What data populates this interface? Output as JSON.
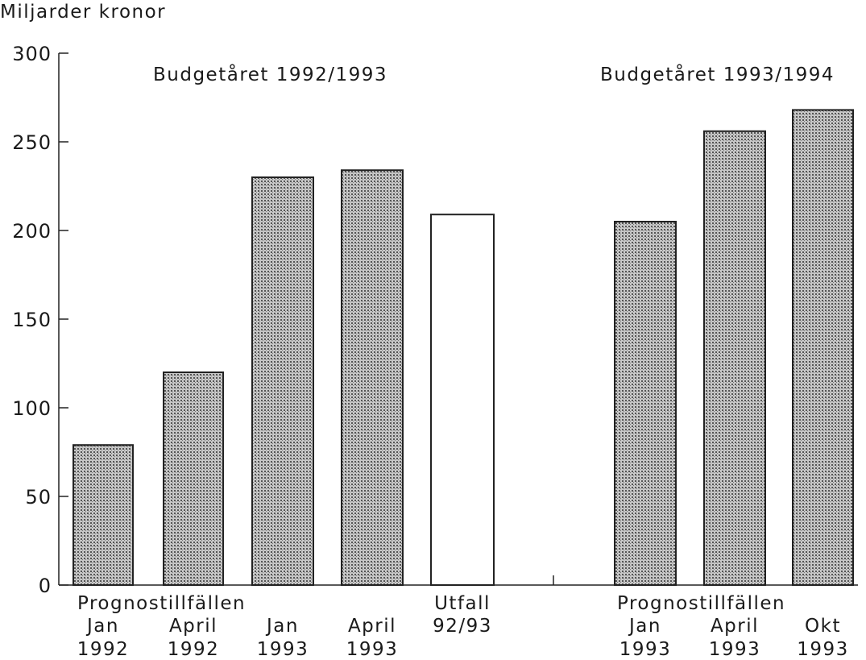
{
  "chart_data": {
    "type": "bar",
    "ylabel": "Miljarder kronor",
    "ylim": [
      0,
      300
    ],
    "yticks": [
      "0",
      "50",
      "100",
      "150",
      "200",
      "250",
      "300"
    ],
    "grid": false,
    "groups": [
      {
        "title": "Budgetåret 1992/1993",
        "label": "Prognostillfällen"
      },
      {
        "title": "Budgetåret 1993/1994",
        "label": "Prognostillfällen"
      }
    ],
    "categories": [
      [
        "Jan",
        "1992"
      ],
      [
        "April",
        "1992"
      ],
      [
        "Jan",
        "1993"
      ],
      [
        "April",
        "1993"
      ],
      [
        "Utfall",
        "92/93"
      ],
      [
        "Jan",
        "1993"
      ],
      [
        "April",
        "1993"
      ],
      [
        "Okt",
        "1993"
      ]
    ],
    "values": [
      79,
      120,
      230,
      234,
      209,
      205,
      256,
      268
    ],
    "kind": [
      "forecast",
      "forecast",
      "forecast",
      "forecast",
      "outcome",
      "forecast",
      "forecast",
      "forecast"
    ]
  }
}
